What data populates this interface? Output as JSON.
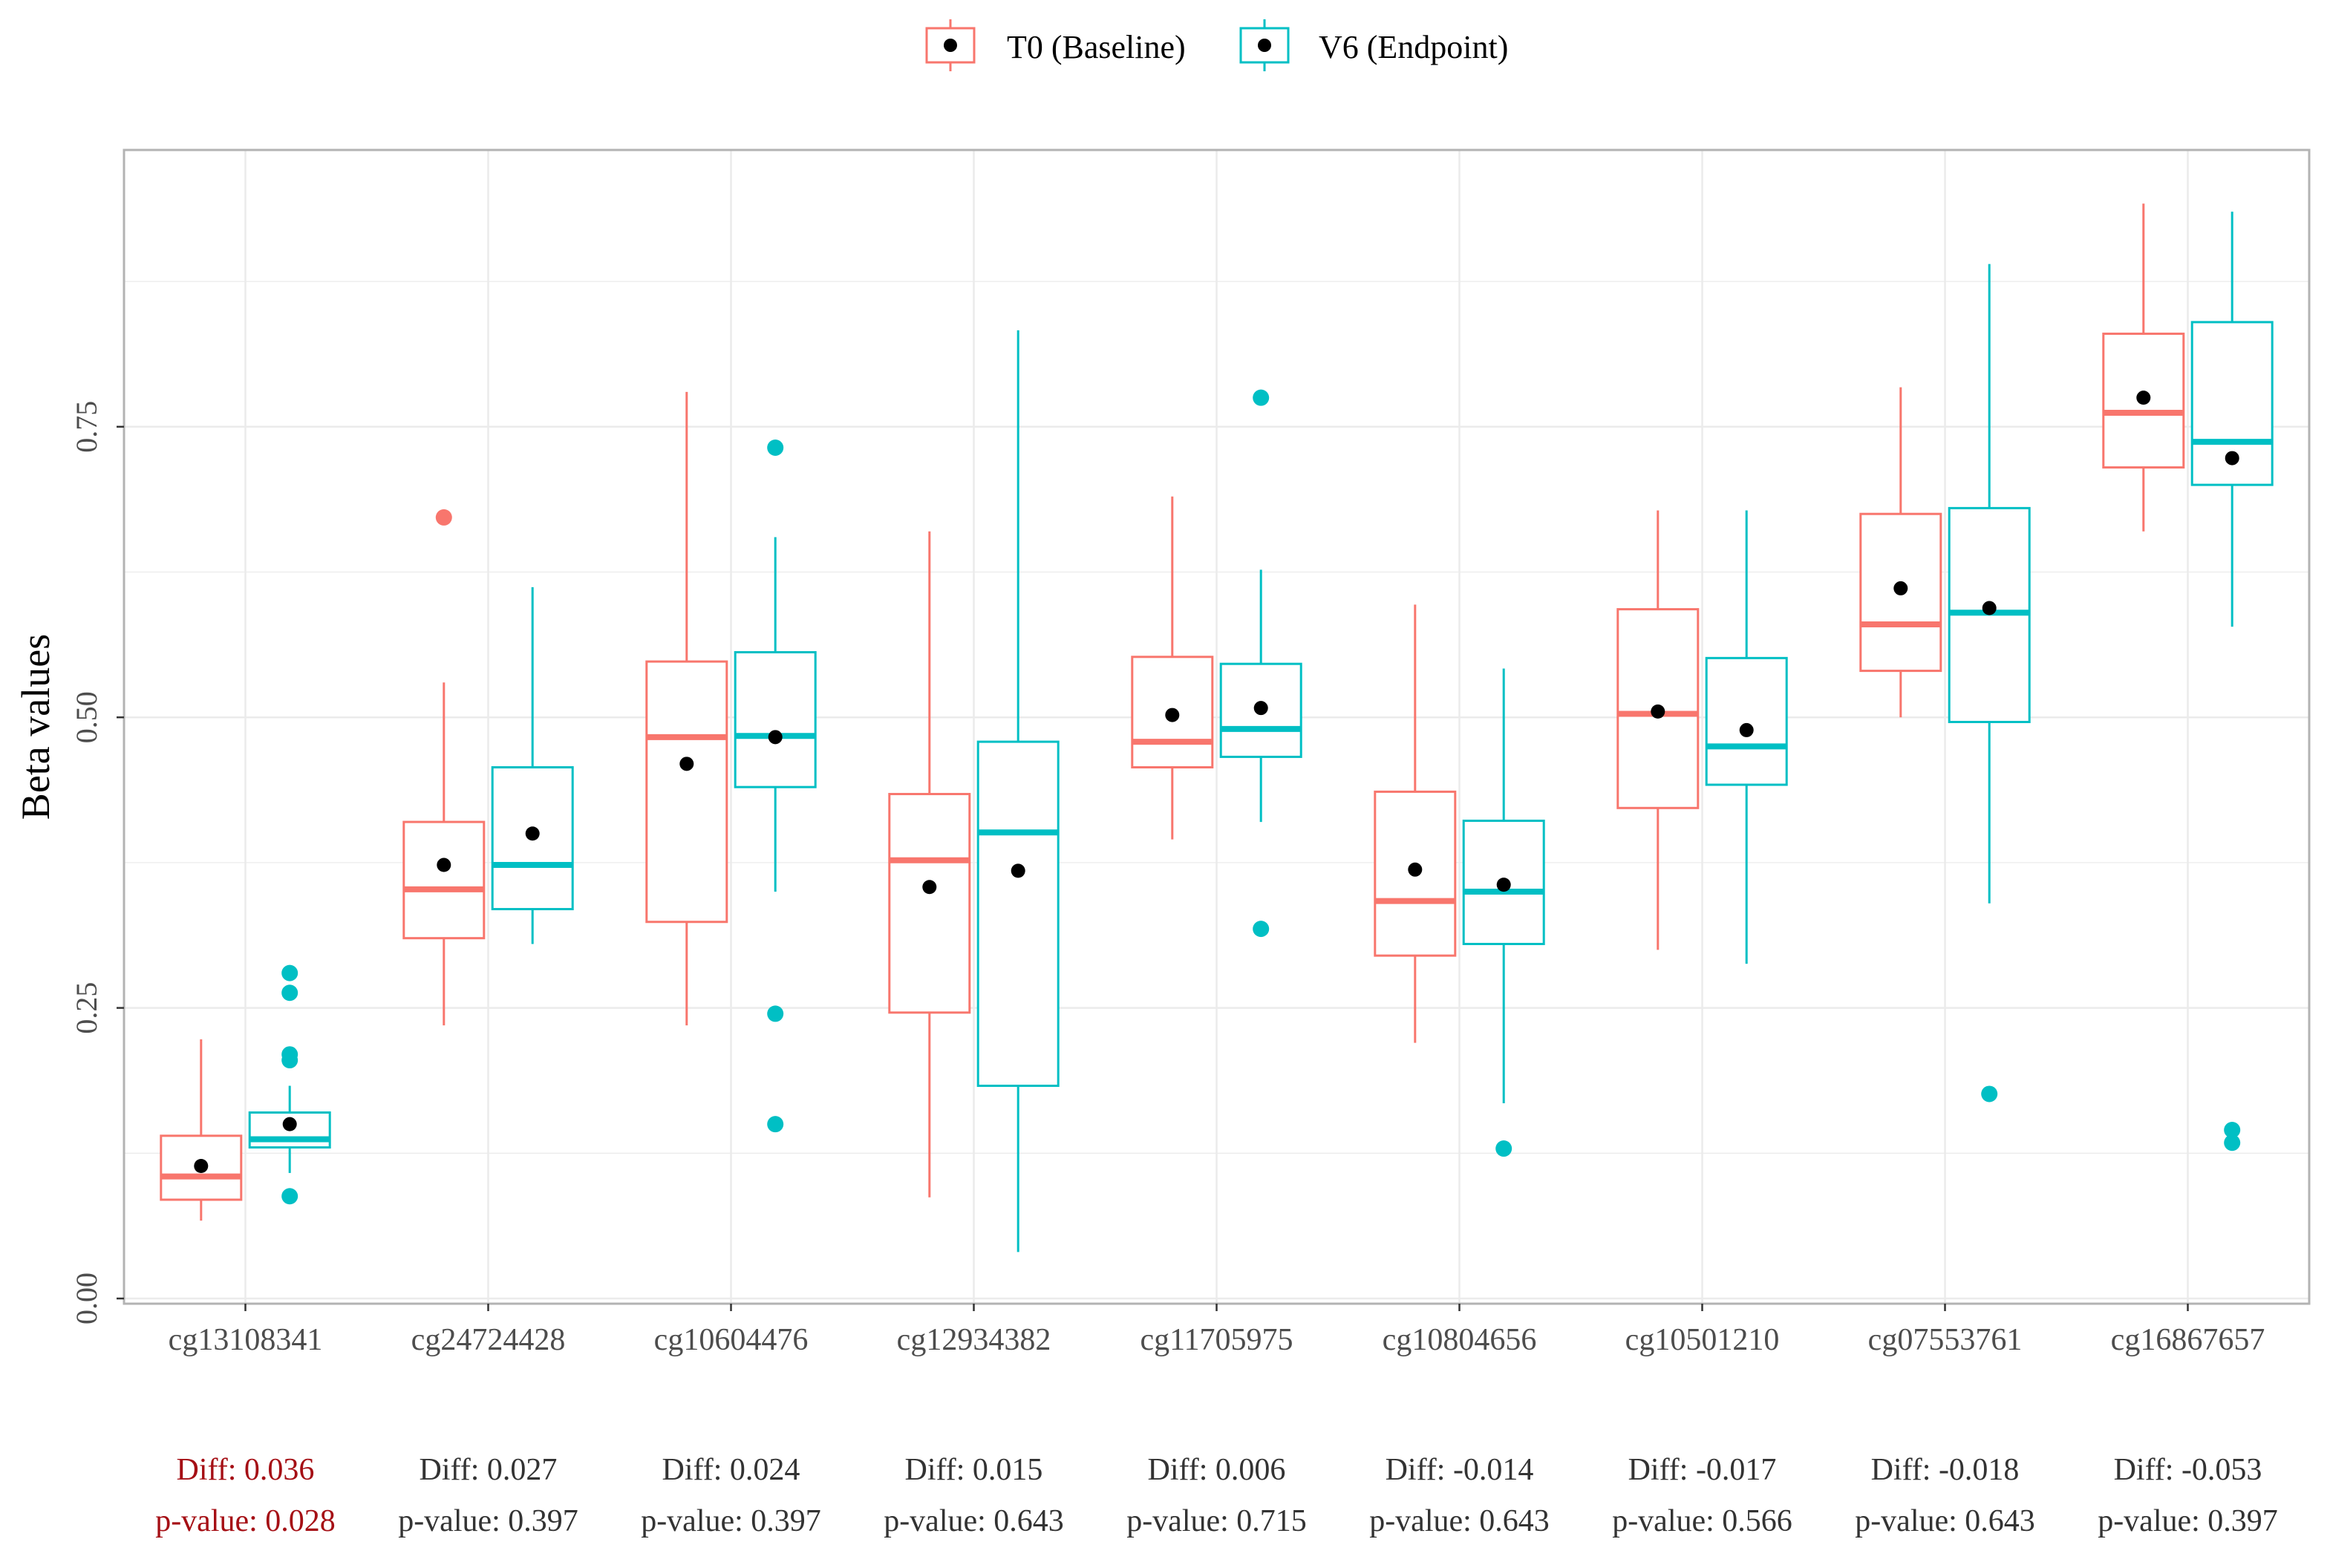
{
  "chart_data": {
    "type": "boxplot",
    "ylabel": "Beta values",
    "xlabel": "",
    "ylim": [
      0,
      0.99
    ],
    "yticks": [
      0,
      0.25,
      0.5,
      0.75
    ],
    "ytick_labels": [
      "0.00",
      "0.25",
      "0.50",
      "0.75"
    ],
    "legend_position": "top",
    "series": [
      {
        "name": "T0 (Baseline)",
        "color": "#F8766D"
      },
      {
        "name": "V6 (Endpoint)",
        "color": "#00BFC4"
      }
    ],
    "significant_color": "#A50F15",
    "categories": [
      {
        "label": "cg13108341",
        "diff": "Diff: 0.036",
        "pvalue": "p-value: 0.028",
        "significant": true,
        "boxes": [
          {
            "min": 0.067,
            "q1": 0.085,
            "median": 0.105,
            "q3": 0.14,
            "max": 0.223,
            "mean": 0.114,
            "outliers": []
          },
          {
            "min": 0.108,
            "q1": 0.13,
            "median": 0.137,
            "q3": 0.16,
            "max": 0.183,
            "mean": 0.15,
            "outliers": [
              0.088,
              0.205,
              0.21,
              0.263,
              0.28
            ]
          }
        ]
      },
      {
        "label": "cg24724428",
        "diff": "Diff: 0.027",
        "pvalue": "p-value: 0.397",
        "significant": false,
        "boxes": [
          {
            "min": 0.235,
            "q1": 0.31,
            "median": 0.352,
            "q3": 0.41,
            "max": 0.53,
            "mean": 0.373,
            "outliers": [
              0.672
            ]
          },
          {
            "min": 0.305,
            "q1": 0.335,
            "median": 0.373,
            "q3": 0.457,
            "max": 0.612,
            "mean": 0.4,
            "outliers": []
          }
        ]
      },
      {
        "label": "cg10604476",
        "diff": "Diff: 0.024",
        "pvalue": "p-value: 0.397",
        "significant": false,
        "boxes": [
          {
            "min": 0.235,
            "q1": 0.324,
            "median": 0.483,
            "q3": 0.548,
            "max": 0.78,
            "mean": 0.46,
            "outliers": []
          },
          {
            "min": 0.35,
            "q1": 0.44,
            "median": 0.484,
            "q3": 0.556,
            "max": 0.655,
            "mean": 0.483,
            "outliers": [
              0.15,
              0.245,
              0.732
            ]
          }
        ]
      },
      {
        "label": "cg12934382",
        "diff": "Diff: 0.015",
        "pvalue": "p-value: 0.643",
        "significant": false,
        "boxes": [
          {
            "min": 0.087,
            "q1": 0.246,
            "median": 0.377,
            "q3": 0.434,
            "max": 0.66,
            "mean": 0.354,
            "outliers": []
          },
          {
            "min": 0.04,
            "q1": 0.183,
            "median": 0.401,
            "q3": 0.479,
            "max": 0.833,
            "mean": 0.368,
            "outliers": []
          }
        ]
      },
      {
        "label": "cg11705975",
        "diff": "Diff: 0.006",
        "pvalue": "p-value: 0.715",
        "significant": false,
        "boxes": [
          {
            "min": 0.395,
            "q1": 0.457,
            "median": 0.479,
            "q3": 0.552,
            "max": 0.69,
            "mean": 0.502,
            "outliers": []
          },
          {
            "min": 0.41,
            "q1": 0.466,
            "median": 0.49,
            "q3": 0.546,
            "max": 0.627,
            "mean": 0.508,
            "outliers": [
              0.318,
              0.775
            ]
          }
        ]
      },
      {
        "label": "cg10804656",
        "diff": "Diff: -0.014",
        "pvalue": "p-value: 0.643",
        "significant": false,
        "boxes": [
          {
            "min": 0.22,
            "q1": 0.295,
            "median": 0.342,
            "q3": 0.436,
            "max": 0.597,
            "mean": 0.369,
            "outliers": []
          },
          {
            "min": 0.168,
            "q1": 0.305,
            "median": 0.35,
            "q3": 0.411,
            "max": 0.542,
            "mean": 0.356,
            "outliers": [
              0.129
            ]
          }
        ]
      },
      {
        "label": "cg10501210",
        "diff": "Diff: -0.017",
        "pvalue": "p-value: 0.566",
        "significant": false,
        "boxes": [
          {
            "min": 0.3,
            "q1": 0.422,
            "median": 0.503,
            "q3": 0.593,
            "max": 0.678,
            "mean": 0.505,
            "outliers": []
          },
          {
            "min": 0.288,
            "q1": 0.442,
            "median": 0.475,
            "q3": 0.551,
            "max": 0.678,
            "mean": 0.489,
            "outliers": []
          }
        ]
      },
      {
        "label": "cg07553761",
        "diff": "Diff: -0.018",
        "pvalue": "p-value: 0.643",
        "significant": false,
        "boxes": [
          {
            "min": 0.5,
            "q1": 0.54,
            "median": 0.58,
            "q3": 0.675,
            "max": 0.784,
            "mean": 0.611,
            "outliers": []
          },
          {
            "min": 0.34,
            "q1": 0.496,
            "median": 0.59,
            "q3": 0.68,
            "max": 0.89,
            "mean": 0.594,
            "outliers": [
              0.176
            ]
          }
        ]
      },
      {
        "label": "cg16867657",
        "diff": "Diff: -0.053",
        "pvalue": "p-value: 0.397",
        "significant": false,
        "boxes": [
          {
            "min": 0.66,
            "q1": 0.715,
            "median": 0.762,
            "q3": 0.83,
            "max": 0.942,
            "mean": 0.775,
            "outliers": []
          },
          {
            "min": 0.578,
            "q1": 0.7,
            "median": 0.737,
            "q3": 0.84,
            "max": 0.935,
            "mean": 0.723,
            "outliers": [
              0.134,
              0.145
            ]
          }
        ]
      }
    ]
  }
}
